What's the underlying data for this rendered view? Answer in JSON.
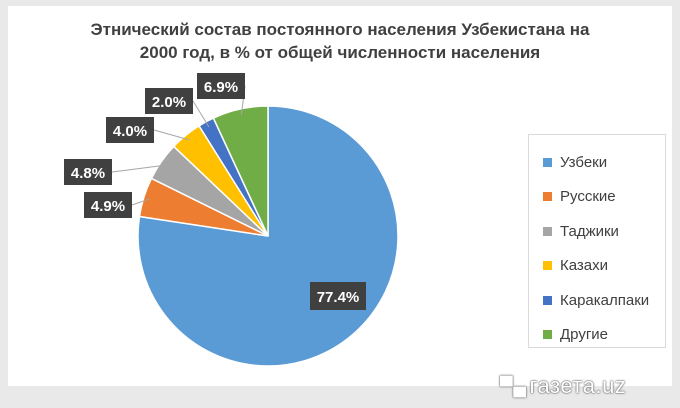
{
  "chart_data": {
    "type": "pie",
    "title_line1": "Этнический состав постоянного населения Узбекистана на",
    "title_line2": "2000 год, в % от общей численности населения",
    "slices": [
      {
        "name": "Узбеки",
        "value": 77.4,
        "label": "77.4%",
        "color": "#5b9bd5"
      },
      {
        "name": "Русские",
        "value": 4.9,
        "label": "4.9%",
        "color": "#ed7d31"
      },
      {
        "name": "Таджики",
        "value": 4.8,
        "label": "4.8%",
        "color": "#a5a5a5"
      },
      {
        "name": "Казахи",
        "value": 4.0,
        "label": "4.0%",
        "color": "#ffc000"
      },
      {
        "name": "Каракалпаки",
        "value": 2.0,
        "label": "2.0%",
        "color": "#4472c4"
      },
      {
        "name": "Другие",
        "value": 6.9,
        "label": "6.9%",
        "color": "#70ad47"
      }
    ],
    "legend_position": "right"
  },
  "watermark": {
    "mark": "▀▄",
    "text": "газета.uz"
  }
}
